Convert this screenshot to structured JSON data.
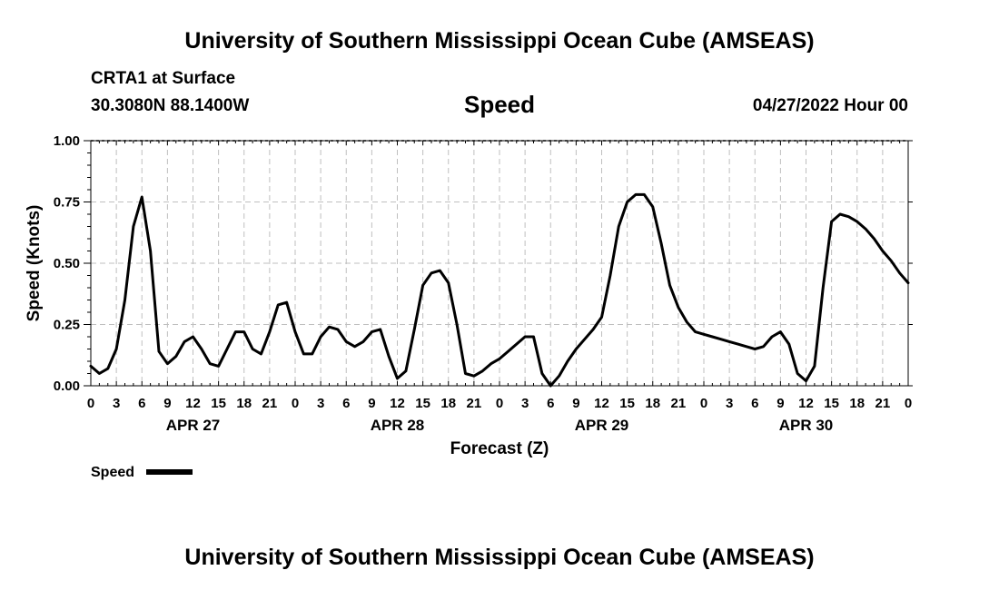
{
  "header": {
    "title": "University of Southern Mississippi Ocean Cube (AMSEAS)",
    "station": "CRTA1 at Surface",
    "coords": "30.3080N  88.1400W",
    "chart_title": "Speed",
    "datetime": "04/27/2022 Hour 00"
  },
  "footer": {
    "title": "University of Southern Mississippi Ocean Cube (AMSEAS)"
  },
  "chart_data": {
    "type": "line",
    "title": "Speed",
    "xlabel": "Forecast (Z)",
    "ylabel": "Speed (Knots)",
    "xlim": [
      0,
      96
    ],
    "ylim": [
      0,
      1
    ],
    "grid": true,
    "x_tick_labels": [
      "0",
      "3",
      "6",
      "9",
      "12",
      "15",
      "18",
      "21",
      "0",
      "3",
      "6",
      "9",
      "12",
      "15",
      "18",
      "21",
      "0",
      "3",
      "6",
      "9",
      "12",
      "15",
      "18",
      "21",
      "0",
      "3",
      "6",
      "9",
      "12",
      "15",
      "18",
      "21",
      "0"
    ],
    "y_ticks": [
      0,
      0.25,
      0.5,
      0.75,
      1.0
    ],
    "y_tick_labels": [
      "0.00",
      "0.25",
      "0.50",
      "0.75",
      "1.00"
    ],
    "date_labels": [
      {
        "label": "APR 27",
        "x": 12
      },
      {
        "label": "APR 28",
        "x": 36
      },
      {
        "label": "APR 29",
        "x": 60
      },
      {
        "label": "APR 30",
        "x": 84
      }
    ],
    "legend": {
      "label": "Speed",
      "position": "bottom-left"
    },
    "series": [
      {
        "name": "Speed",
        "color": "#000000",
        "x": [
          0,
          1,
          2,
          3,
          4,
          5,
          6,
          7,
          8,
          9,
          10,
          11,
          12,
          13,
          14,
          15,
          16,
          17,
          18,
          19,
          20,
          21,
          22,
          23,
          24,
          25,
          26,
          27,
          28,
          29,
          30,
          31,
          32,
          33,
          34,
          35,
          36,
          37,
          38,
          39,
          40,
          41,
          42,
          43,
          44,
          45,
          46,
          47,
          48,
          49,
          50,
          51,
          52,
          53,
          54,
          55,
          56,
          57,
          58,
          59,
          60,
          61,
          62,
          63,
          64,
          65,
          66,
          67,
          68,
          69,
          70,
          71,
          72,
          73,
          74,
          75,
          76,
          77,
          78,
          79,
          80,
          81,
          82,
          83,
          84,
          85,
          86,
          87,
          88,
          89,
          90,
          91,
          92,
          93,
          94,
          95,
          96
        ],
        "values": [
          0.08,
          0.05,
          0.07,
          0.15,
          0.35,
          0.65,
          0.77,
          0.55,
          0.14,
          0.09,
          0.12,
          0.18,
          0.2,
          0.15,
          0.09,
          0.08,
          0.15,
          0.22,
          0.22,
          0.15,
          0.13,
          0.22,
          0.33,
          0.34,
          0.22,
          0.13,
          0.13,
          0.2,
          0.24,
          0.23,
          0.18,
          0.16,
          0.18,
          0.22,
          0.23,
          0.12,
          0.03,
          0.06,
          0.23,
          0.41,
          0.46,
          0.47,
          0.42,
          0.25,
          0.05,
          0.04,
          0.06,
          0.09,
          0.11,
          0.14,
          0.17,
          0.2,
          0.2,
          0.05,
          0.0,
          0.04,
          0.1,
          0.15,
          0.19,
          0.23,
          0.28,
          0.45,
          0.65,
          0.75,
          0.78,
          0.78,
          0.73,
          0.58,
          0.41,
          0.32,
          0.26,
          0.22,
          0.21,
          0.2,
          0.19,
          0.18,
          0.17,
          0.16,
          0.15,
          0.16,
          0.2,
          0.22,
          0.17,
          0.05,
          0.02,
          0.08,
          0.4,
          0.67,
          0.7,
          0.69,
          0.67,
          0.64,
          0.6,
          0.55,
          0.51,
          0.46,
          0.42
        ]
      }
    ]
  }
}
